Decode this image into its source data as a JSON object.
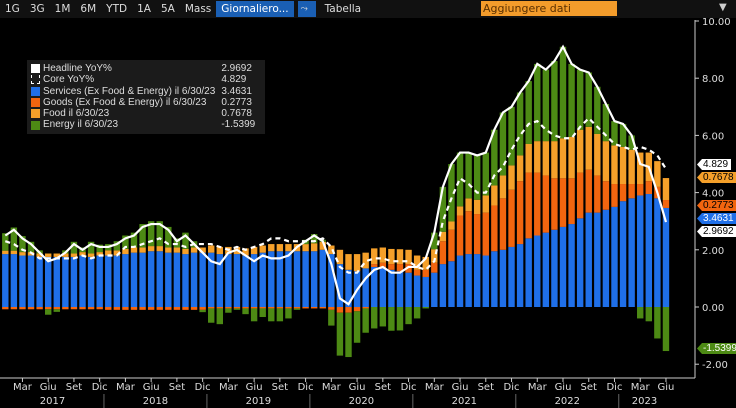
{
  "toolbar": {
    "ranges": [
      "1G",
      "3G",
      "1M",
      "6M",
      "YTD",
      "1A",
      "5A",
      "Mass"
    ],
    "frequency": "Giornaliero...",
    "chart_icon": "line-chart-icon",
    "table": "Tabella",
    "add_data": "Aggiungere dati",
    "menu_icon": "dropdown-menu-icon"
  },
  "legend": [
    {
      "label": "Headline YoY%",
      "value": "2.9692",
      "color": "#ffffff"
    },
    {
      "label": "Core YoY%",
      "value": "4.829",
      "color": "#ffffff"
    },
    {
      "label": "Services (Ex Food & Energy) il 6/30/23",
      "value": "3.4631",
      "color": "#1f6fe8"
    },
    {
      "label": "Goods (Ex Food & Energy) il 6/30/23",
      "value": "0.2773",
      "color": "#f2650f"
    },
    {
      "label": "Food il 6/30/23",
      "value": "0.7678",
      "color": "#f5a02a"
    },
    {
      "label": "Energy il 6/30/23",
      "value": "-1.5399",
      "color": "#4d8a14"
    }
  ],
  "tags": [
    {
      "value": "4.829",
      "bg": "#ffffff",
      "fg": "#000000"
    },
    {
      "value": "0.7678",
      "bg": "#f5a02a",
      "fg": "#000000"
    },
    {
      "value": "0.2773",
      "bg": "#f2650f",
      "fg": "#000000"
    },
    {
      "value": "3.4631",
      "bg": "#1f6fe8",
      "fg": "#ffffff"
    },
    {
      "value": "2.9692",
      "bg": "#ffffff",
      "fg": "#000000"
    },
    {
      "value": "-1.5399",
      "bg": "#4d8a14",
      "fg": "#ffffff"
    }
  ],
  "chart_data": {
    "type": "bar",
    "stacked": true,
    "x_start": "2017-01",
    "x_end": "2023-06",
    "frequency": "monthly",
    "ylim": [
      -2.5,
      10.5
    ],
    "yticks": [
      "10.00",
      "8.00",
      "6.00",
      "4.00",
      "2.00",
      "0.00",
      "-2.00"
    ],
    "month_ticks": [
      "Mar",
      "Giu",
      "Set",
      "Dic"
    ],
    "years": [
      "2017",
      "2018",
      "2019",
      "2020",
      "2021",
      "2022",
      "2023"
    ],
    "axis_side": "right",
    "grid": false,
    "legend_position": "top-left",
    "series": [
      {
        "name": "Services (Ex Food & Energy)",
        "kind": "bar",
        "color": "#1f6fe8",
        "values": [
          1.85,
          1.85,
          1.8,
          1.8,
          1.75,
          1.75,
          1.75,
          1.75,
          1.75,
          1.8,
          1.75,
          1.8,
          1.8,
          1.8,
          1.85,
          1.9,
          1.9,
          1.95,
          1.95,
          1.9,
          1.9,
          1.85,
          1.9,
          1.9,
          1.9,
          1.85,
          1.85,
          1.85,
          1.8,
          1.85,
          1.9,
          1.95,
          1.95,
          1.95,
          1.95,
          1.95,
          1.95,
          2.0,
          1.85,
          1.5,
          1.3,
          1.25,
          1.35,
          1.4,
          1.35,
          1.3,
          1.25,
          1.2,
          1.1,
          1.05,
          1.2,
          1.5,
          1.6,
          1.8,
          1.85,
          1.85,
          1.8,
          1.95,
          2.0,
          2.1,
          2.2,
          2.4,
          2.5,
          2.6,
          2.7,
          2.8,
          2.9,
          3.1,
          3.3,
          3.3,
          3.4,
          3.5,
          3.7,
          3.8,
          3.9,
          3.95,
          3.8,
          3.4631
        ]
      },
      {
        "name": "Goods (Ex Food & Energy)",
        "kind": "bar",
        "color": "#f2650f",
        "values": [
          -0.08,
          -0.08,
          -0.08,
          -0.08,
          -0.08,
          -0.08,
          -0.08,
          -0.08,
          -0.08,
          -0.08,
          -0.08,
          -0.08,
          -0.1,
          -0.1,
          -0.1,
          -0.1,
          -0.1,
          -0.1,
          -0.1,
          -0.1,
          -0.1,
          -0.1,
          -0.1,
          -0.1,
          -0.05,
          -0.05,
          -0.05,
          -0.05,
          -0.05,
          -0.05,
          -0.05,
          -0.05,
          -0.05,
          -0.05,
          -0.05,
          -0.05,
          -0.05,
          -0.05,
          -0.1,
          -0.2,
          -0.2,
          -0.15,
          -0.05,
          0.1,
          0.2,
          0.2,
          0.25,
          0.3,
          0.2,
          0.25,
          0.35,
          0.8,
          1.1,
          1.4,
          1.5,
          1.4,
          1.5,
          1.6,
          1.8,
          2.0,
          2.2,
          2.3,
          2.2,
          2.0,
          1.8,
          1.7,
          1.6,
          1.6,
          1.5,
          1.3,
          1.0,
          0.8,
          0.6,
          0.5,
          0.4,
          0.45,
          0.4,
          0.2773
        ]
      },
      {
        "name": "Food",
        "kind": "bar",
        "color": "#f5a02a",
        "values": [
          0.12,
          0.12,
          0.12,
          0.12,
          0.12,
          0.12,
          0.12,
          0.12,
          0.12,
          0.12,
          0.12,
          0.12,
          0.18,
          0.18,
          0.18,
          0.18,
          0.18,
          0.18,
          0.18,
          0.18,
          0.18,
          0.18,
          0.18,
          0.18,
          0.25,
          0.25,
          0.25,
          0.25,
          0.25,
          0.25,
          0.25,
          0.25,
          0.25,
          0.25,
          0.25,
          0.25,
          0.28,
          0.28,
          0.3,
          0.5,
          0.55,
          0.6,
          0.55,
          0.55,
          0.53,
          0.53,
          0.52,
          0.5,
          0.5,
          0.45,
          0.47,
          0.33,
          0.29,
          0.32,
          0.45,
          0.5,
          0.6,
          0.7,
          0.8,
          0.85,
          0.9,
          1.0,
          1.1,
          1.2,
          1.3,
          1.4,
          1.45,
          1.5,
          1.5,
          1.45,
          1.4,
          1.35,
          1.3,
          1.2,
          1.1,
          1.0,
          0.9,
          0.7678
        ]
      },
      {
        "name": "Energy",
        "kind": "bar",
        "color": "#4d8a14",
        "values": [
          0.61,
          0.81,
          0.56,
          0.36,
          0.11,
          -0.19,
          -0.09,
          0.11,
          0.41,
          0.16,
          0.41,
          0.26,
          0.22,
          0.32,
          0.47,
          0.52,
          0.82,
          0.87,
          0.87,
          0.72,
          0.32,
          0.57,
          0.22,
          -0.08,
          -0.5,
          -0.55,
          -0.15,
          -0.05,
          -0.2,
          -0.45,
          -0.3,
          -0.45,
          -0.45,
          -0.35,
          -0.05,
          0.15,
          0.32,
          0.07,
          -0.55,
          -1.5,
          -1.55,
          -1.1,
          -0.85,
          -0.75,
          -0.68,
          -0.83,
          -0.82,
          -0.6,
          -0.4,
          -0.05,
          0.58,
          1.57,
          2.01,
          1.88,
          1.6,
          1.55,
          1.5,
          1.95,
          2.2,
          2.05,
          2.2,
          2.2,
          2.7,
          2.5,
          2.8,
          3.2,
          2.55,
          2.1,
          1.9,
          1.65,
          1.3,
          0.85,
          0.8,
          0.5,
          -0.4,
          -0.5,
          -1.1,
          -1.5399
        ]
      },
      {
        "name": "Headline YoY%",
        "kind": "line",
        "color": "#ffffff",
        "values": [
          2.5,
          2.7,
          2.4,
          2.2,
          1.9,
          1.6,
          1.7,
          1.9,
          2.2,
          2.0,
          2.2,
          2.1,
          2.1,
          2.2,
          2.4,
          2.5,
          2.8,
          2.9,
          2.9,
          2.7,
          2.3,
          2.5,
          2.2,
          1.9,
          1.6,
          1.5,
          1.9,
          2.0,
          1.8,
          1.6,
          1.8,
          1.7,
          1.7,
          1.8,
          2.1,
          2.3,
          2.5,
          2.3,
          1.5,
          0.3,
          0.1,
          0.6,
          1.0,
          1.3,
          1.4,
          1.2,
          1.2,
          1.4,
          1.4,
          1.7,
          2.6,
          4.2,
          5.0,
          5.4,
          5.4,
          5.3,
          5.4,
          6.2,
          6.8,
          7.0,
          7.5,
          7.9,
          8.5,
          8.3,
          8.6,
          9.1,
          8.5,
          8.3,
          8.2,
          7.7,
          7.1,
          6.5,
          6.4,
          6.0,
          5.0,
          4.9,
          4.0,
          2.9692
        ]
      },
      {
        "name": "Core YoY%",
        "kind": "dashed-line",
        "color": "#ffffff",
        "values": [
          2.3,
          2.2,
          2.0,
          1.9,
          1.7,
          1.7,
          1.7,
          1.7,
          1.7,
          1.8,
          1.7,
          1.8,
          1.8,
          1.8,
          2.1,
          2.1,
          2.2,
          2.3,
          2.4,
          2.2,
          2.2,
          2.1,
          2.2,
          2.2,
          2.2,
          2.1,
          2.0,
          2.1,
          2.0,
          2.1,
          2.2,
          2.4,
          2.4,
          2.3,
          2.3,
          2.3,
          2.3,
          2.4,
          2.1,
          1.4,
          1.2,
          1.2,
          1.6,
          1.7,
          1.7,
          1.6,
          1.6,
          1.6,
          1.4,
          1.3,
          1.6,
          3.0,
          3.8,
          4.5,
          4.3,
          4.0,
          4.0,
          4.6,
          4.9,
          5.5,
          6.0,
          6.4,
          6.5,
          6.2,
          6.0,
          5.9,
          5.9,
          6.3,
          6.6,
          6.3,
          6.0,
          5.7,
          5.6,
          5.5,
          5.6,
          5.5,
          5.3,
          4.829
        ]
      }
    ]
  }
}
